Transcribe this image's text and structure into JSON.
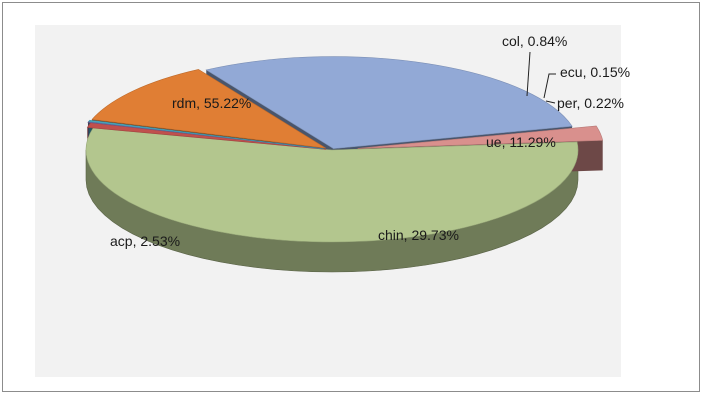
{
  "chart_data": {
    "type": "pie",
    "style": "3d-exploded",
    "title": "",
    "slices": [
      {
        "label": "rdm",
        "value": 55.22,
        "color": "#b3c68e",
        "label_text": "rdm, 55.22%"
      },
      {
        "label": "col",
        "value": 0.84,
        "color": "#c0504d",
        "label_text": "col, 0.84%"
      },
      {
        "label": "ecu",
        "value": 0.15,
        "color": "#8064a2",
        "label_text": "ecu, 0.15%"
      },
      {
        "label": "per",
        "value": 0.22,
        "color": "#4bacc6",
        "label_text": "per, 0.22%"
      },
      {
        "label": "ue",
        "value": 11.29,
        "color": "#e07e34",
        "label_text": "ue, 11.29%"
      },
      {
        "label": "chin",
        "value": 29.73,
        "color": "#92a9d6",
        "label_text": "chin, 29.73%"
      },
      {
        "label": "acp",
        "value": 2.53,
        "color": "#d9908d",
        "label_text": "acp, 2.53%"
      }
    ],
    "legend": "none",
    "grid": false
  }
}
